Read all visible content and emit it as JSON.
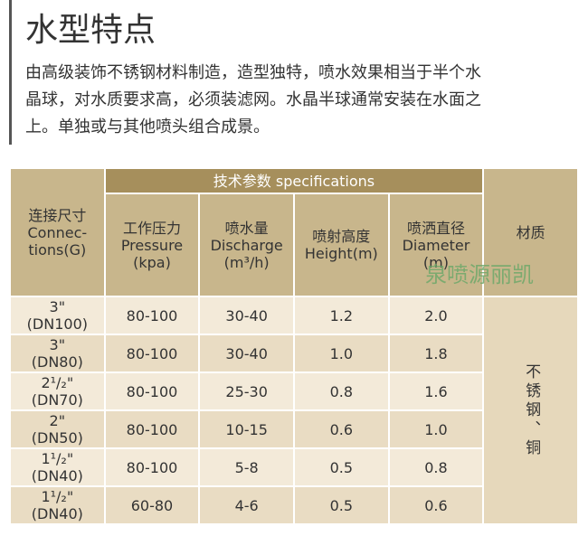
{
  "header": {
    "title": "水型特点"
  },
  "description": [
    "由高级装饰不锈钢材料制造，造型独特，喷水效果相当于半个水",
    "晶球，对水质要求高，必须装滤网。水晶半球通常安装在水面之",
    "上。单独或与其他喷头组合成景。"
  ],
  "table": {
    "group_header": "技术参数  specifications",
    "columns": [
      [
        "连接尺寸",
        "Connec-",
        "tions(G)"
      ],
      [
        "工作压力",
        "Pressure",
        "(kpa)"
      ],
      [
        "喷水量",
        "Discharge",
        "(m³/h)"
      ],
      [
        "喷射高度",
        "Height(m)"
      ],
      [
        "喷洒直径",
        "Diameter",
        "(m)"
      ],
      [
        "材质"
      ]
    ],
    "watermark": "泉喷源丽凯",
    "rows": [
      [
        "3\"",
        "(DN100)",
        "80-100",
        "30-40",
        "1.2",
        "2.0"
      ],
      [
        "3\"",
        "(DN80)",
        "80-100",
        "30-40",
        "1.0",
        "1.8"
      ],
      [
        "2¹/₂\"",
        "(DN70)",
        "80-100",
        "25-30",
        "0.8",
        "1.6"
      ],
      [
        "2\"",
        "(DN50)",
        "80-100",
        "10-15",
        "0.6",
        "1.0"
      ],
      [
        "1¹/₂\"",
        "(DN40)",
        "80-100",
        "5-8",
        "0.5",
        "0.8"
      ],
      [
        "1¹/₂\"",
        "(DN40)",
        "60-80",
        "4-6",
        "0.5",
        "0.6"
      ]
    ],
    "material": "不锈钢、铜"
  }
}
